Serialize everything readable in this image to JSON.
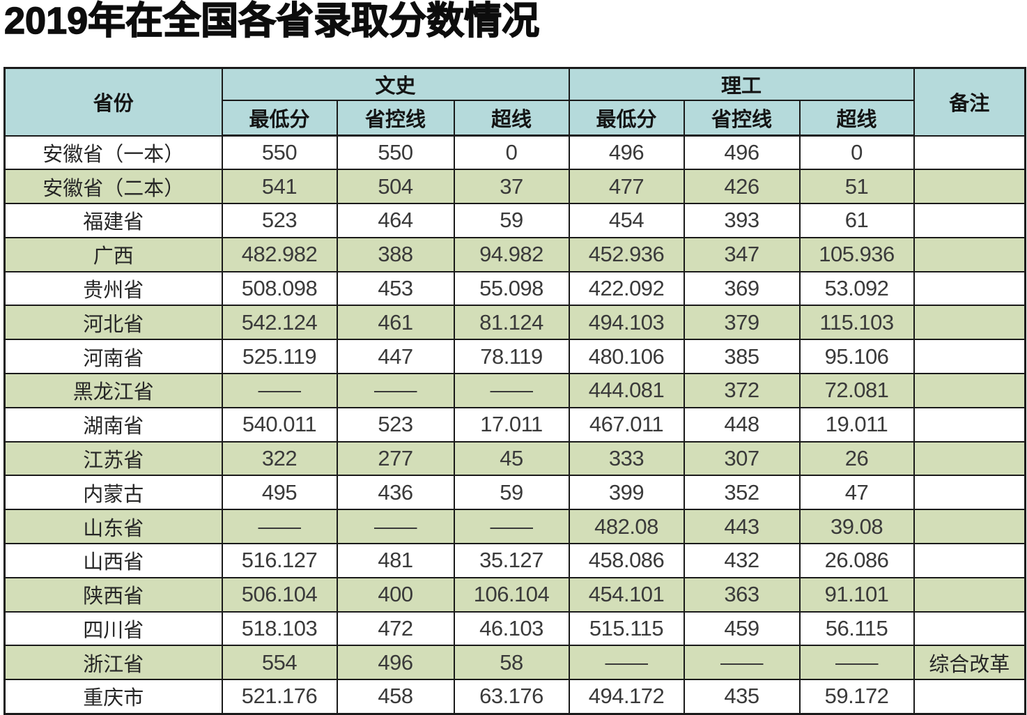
{
  "title": "2019年在全国各省录取分数情况",
  "colors": {
    "header_bg": "#b5dadb",
    "alt_row_bg": "#d3deb8",
    "border": "#1a1a1a",
    "number_text": "#3a3a3a"
  },
  "table": {
    "header": {
      "province": "省份",
      "wenshi": "文史",
      "ligong": "理工",
      "remark": "备注",
      "sub": [
        "最低分",
        "省控线",
        "超线"
      ]
    },
    "rows": [
      {
        "province": "安徽省（一本）",
        "wen": [
          "550",
          "550",
          "0"
        ],
        "li": [
          "496",
          "496",
          "0"
        ],
        "remark": ""
      },
      {
        "province": "安徽省（二本）",
        "wen": [
          "541",
          "504",
          "37"
        ],
        "li": [
          "477",
          "426",
          "51"
        ],
        "remark": ""
      },
      {
        "province": "福建省",
        "wen": [
          "523",
          "464",
          "59"
        ],
        "li": [
          "454",
          "393",
          "61"
        ],
        "remark": ""
      },
      {
        "province": "广西",
        "wen": [
          "482.982",
          "388",
          "94.982"
        ],
        "li": [
          "452.936",
          "347",
          "105.936"
        ],
        "remark": ""
      },
      {
        "province": "贵州省",
        "wen": [
          "508.098",
          "453",
          "55.098"
        ],
        "li": [
          "422.092",
          "369",
          "53.092"
        ],
        "remark": ""
      },
      {
        "province": "河北省",
        "wen": [
          "542.124",
          "461",
          "81.124"
        ],
        "li": [
          "494.103",
          "379",
          "115.103"
        ],
        "remark": ""
      },
      {
        "province": "河南省",
        "wen": [
          "525.119",
          "447",
          "78.119"
        ],
        "li": [
          "480.106",
          "385",
          "95.106"
        ],
        "remark": ""
      },
      {
        "province": "黑龙江省",
        "wen": [
          "——",
          "——",
          "——"
        ],
        "li": [
          "444.081",
          "372",
          "72.081"
        ],
        "remark": ""
      },
      {
        "province": "湖南省",
        "wen": [
          "540.011",
          "523",
          "17.011"
        ],
        "li": [
          "467.011",
          "448",
          "19.011"
        ],
        "remark": ""
      },
      {
        "province": "江苏省",
        "wen": [
          "322",
          "277",
          "45"
        ],
        "li": [
          "333",
          "307",
          "26"
        ],
        "remark": ""
      },
      {
        "province": "内蒙古",
        "wen": [
          "495",
          "436",
          "59"
        ],
        "li": [
          "399",
          "352",
          "47"
        ],
        "remark": ""
      },
      {
        "province": "山东省",
        "wen": [
          "——",
          "——",
          "——"
        ],
        "li": [
          "482.08",
          "443",
          "39.08"
        ],
        "remark": ""
      },
      {
        "province": "山西省",
        "wen": [
          "516.127",
          "481",
          "35.127"
        ],
        "li": [
          "458.086",
          "432",
          "26.086"
        ],
        "remark": ""
      },
      {
        "province": "陕西省",
        "wen": [
          "506.104",
          "400",
          "106.104"
        ],
        "li": [
          "454.101",
          "363",
          "91.101"
        ],
        "remark": ""
      },
      {
        "province": "四川省",
        "wen": [
          "518.103",
          "472",
          "46.103"
        ],
        "li": [
          "515.115",
          "459",
          "56.115"
        ],
        "remark": ""
      },
      {
        "province": "浙江省",
        "wen": [
          "554",
          "496",
          "58"
        ],
        "li": [
          "——",
          "——",
          "——"
        ],
        "remark": "综合改革"
      },
      {
        "province": "重庆市",
        "wen": [
          "521.176",
          "458",
          "63.176"
        ],
        "li": [
          "494.172",
          "435",
          "59.172"
        ],
        "remark": ""
      }
    ]
  }
}
